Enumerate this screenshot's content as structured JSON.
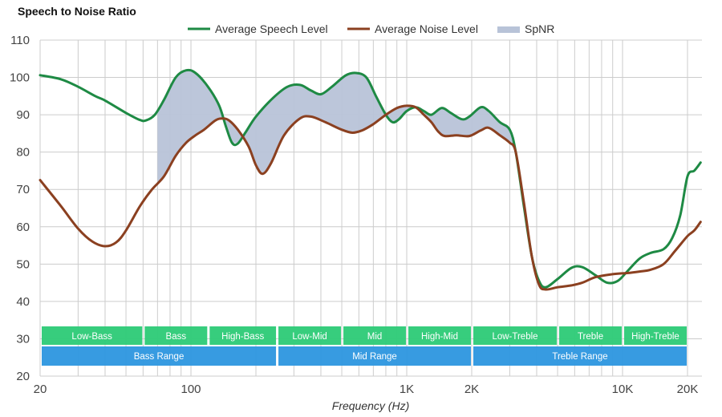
{
  "chart_data": {
    "type": "line",
    "title": "Speech to Noise Ratio",
    "xlabel": "Frequency (Hz)",
    "ylabel": "",
    "xscale": "log",
    "xlim": [
      20,
      23000
    ],
    "ylim": [
      20,
      110
    ],
    "grid": true,
    "legend_position": "top-center",
    "x_ticks": [
      {
        "value": 20,
        "label": "20"
      },
      {
        "value": 100,
        "label": "100"
      },
      {
        "value": 1000,
        "label": "1K"
      },
      {
        "value": 2000,
        "label": "2K"
      },
      {
        "value": 10000,
        "label": "10K"
      },
      {
        "value": 20000,
        "label": "20K"
      }
    ],
    "x_minor_grid": [
      30,
      40,
      50,
      60,
      70,
      80,
      90,
      200,
      300,
      400,
      500,
      600,
      700,
      800,
      900,
      3000,
      4000,
      5000,
      6000,
      7000,
      8000,
      9000,
      20000
    ],
    "y_ticks": [
      20,
      30,
      40,
      50,
      60,
      70,
      80,
      90,
      100,
      110
    ],
    "legend": [
      {
        "name": "Average Speech Level",
        "color": "#1e8a44",
        "kind": "line"
      },
      {
        "name": "Average Noise Level",
        "color": "#8b4020",
        "kind": "line"
      },
      {
        "name": "SpNR",
        "color": "#b8c3d8",
        "kind": "area"
      }
    ],
    "series": [
      {
        "name": "Average Speech Level",
        "color": "#1e8a44",
        "points": [
          [
            20,
            100.6
          ],
          [
            25,
            99.5
          ],
          [
            30,
            97.5
          ],
          [
            36,
            95.0
          ],
          [
            40,
            93.8
          ],
          [
            50,
            90.5
          ],
          [
            58,
            88.6
          ],
          [
            62,
            88.5
          ],
          [
            68,
            90.0
          ],
          [
            75,
            94.0
          ],
          [
            85,
            100.0
          ],
          [
            95,
            101.9
          ],
          [
            105,
            101.2
          ],
          [
            120,
            97.5
          ],
          [
            135,
            92.5
          ],
          [
            145,
            87.0
          ],
          [
            155,
            82.5
          ],
          [
            165,
            82.3
          ],
          [
            180,
            85.5
          ],
          [
            200,
            89.5
          ],
          [
            240,
            94.5
          ],
          [
            280,
            97.5
          ],
          [
            320,
            98.0
          ],
          [
            360,
            96.5
          ],
          [
            400,
            95.5
          ],
          [
            450,
            97.5
          ],
          [
            520,
            100.5
          ],
          [
            580,
            101.2
          ],
          [
            650,
            100.0
          ],
          [
            720,
            95.0
          ],
          [
            800,
            90.0
          ],
          [
            860,
            88.0
          ],
          [
            920,
            88.8
          ],
          [
            1000,
            91.0
          ],
          [
            1100,
            92.0
          ],
          [
            1200,
            91.0
          ],
          [
            1300,
            90.0
          ],
          [
            1450,
            91.8
          ],
          [
            1600,
            90.5
          ],
          [
            1800,
            88.8
          ],
          [
            1950,
            89.5
          ],
          [
            2200,
            92.0
          ],
          [
            2400,
            91.0
          ],
          [
            2700,
            88.0
          ],
          [
            3000,
            86.0
          ],
          [
            3200,
            80.0
          ],
          [
            3500,
            65.0
          ],
          [
            3800,
            52.0
          ],
          [
            4100,
            45.5
          ],
          [
            4400,
            43.8
          ],
          [
            5000,
            46.0
          ],
          [
            5800,
            49.0
          ],
          [
            6500,
            49.2
          ],
          [
            7500,
            47.0
          ],
          [
            8500,
            45.0
          ],
          [
            9500,
            45.5
          ],
          [
            10500,
            48.0
          ],
          [
            12000,
            51.5
          ],
          [
            13500,
            53.0
          ],
          [
            15500,
            54.0
          ],
          [
            17000,
            57.0
          ],
          [
            18500,
            63.0
          ],
          [
            20000,
            73.5
          ],
          [
            21500,
            75.0
          ],
          [
            23000,
            77.2
          ]
        ]
      },
      {
        "name": "Average Noise Level",
        "color": "#8b4020",
        "points": [
          [
            20,
            72.5
          ],
          [
            25,
            65.5
          ],
          [
            30,
            59.5
          ],
          [
            35,
            56.0
          ],
          [
            40,
            54.8
          ],
          [
            45,
            55.8
          ],
          [
            50,
            59.0
          ],
          [
            58,
            65.5
          ],
          [
            66,
            70.0
          ],
          [
            75,
            73.5
          ],
          [
            85,
            79.0
          ],
          [
            95,
            82.5
          ],
          [
            105,
            84.5
          ],
          [
            115,
            86.0
          ],
          [
            130,
            88.5
          ],
          [
            140,
            89.0
          ],
          [
            150,
            88.5
          ],
          [
            165,
            86.0
          ],
          [
            185,
            81.5
          ],
          [
            200,
            76.5
          ],
          [
            215,
            74.2
          ],
          [
            235,
            77.0
          ],
          [
            270,
            84.5
          ],
          [
            320,
            89.0
          ],
          [
            360,
            89.5
          ],
          [
            420,
            88.0
          ],
          [
            500,
            86.0
          ],
          [
            560,
            85.2
          ],
          [
            620,
            85.8
          ],
          [
            700,
            87.5
          ],
          [
            800,
            90.0
          ],
          [
            900,
            91.8
          ],
          [
            1000,
            92.4
          ],
          [
            1100,
            92.0
          ],
          [
            1200,
            90.0
          ],
          [
            1300,
            88.0
          ],
          [
            1400,
            85.5
          ],
          [
            1500,
            84.3
          ],
          [
            1700,
            84.5
          ],
          [
            1950,
            84.3
          ],
          [
            2200,
            85.8
          ],
          [
            2400,
            86.5
          ],
          [
            2700,
            84.5
          ],
          [
            3000,
            82.5
          ],
          [
            3200,
            80.0
          ],
          [
            3500,
            66.0
          ],
          [
            3800,
            52.0
          ],
          [
            4100,
            44.5
          ],
          [
            4400,
            43.2
          ],
          [
            5000,
            43.8
          ],
          [
            5800,
            44.3
          ],
          [
            6500,
            45.0
          ],
          [
            7500,
            46.5
          ],
          [
            9000,
            47.3
          ],
          [
            10500,
            47.6
          ],
          [
            12000,
            48.0
          ],
          [
            13500,
            48.5
          ],
          [
            15500,
            50.0
          ],
          [
            17500,
            53.5
          ],
          [
            20000,
            57.5
          ],
          [
            21500,
            59.0
          ],
          [
            23000,
            61.3
          ]
        ]
      }
    ],
    "spnr_area": {
      "name": "SpNR",
      "x_range": [
        70,
        3300
      ],
      "color": "#b8c3d8"
    },
    "frequency_bands": [
      {
        "label": "Low-Bass",
        "from": 20,
        "to": 60
      },
      {
        "label": "Bass",
        "from": 60,
        "to": 120
      },
      {
        "label": "High-Bass",
        "from": 120,
        "to": 250
      },
      {
        "label": "Low-Mid",
        "from": 250,
        "to": 500
      },
      {
        "label": "Mid",
        "from": 500,
        "to": 1000
      },
      {
        "label": "High-Mid",
        "from": 1000,
        "to": 2000
      },
      {
        "label": "Low-Treble",
        "from": 2000,
        "to": 5000
      },
      {
        "label": "Treble",
        "from": 5000,
        "to": 10000
      },
      {
        "label": "High-Treble",
        "from": 10000,
        "to": 20000
      }
    ],
    "frequency_ranges": [
      {
        "label": "Bass Range",
        "from": 20,
        "to": 250
      },
      {
        "label": "Mid Range",
        "from": 250,
        "to": 2000
      },
      {
        "label": "Treble Range",
        "from": 2000,
        "to": 20000
      }
    ],
    "band_colors": {
      "band": "#33cc7a",
      "range": "#3399e0"
    }
  }
}
